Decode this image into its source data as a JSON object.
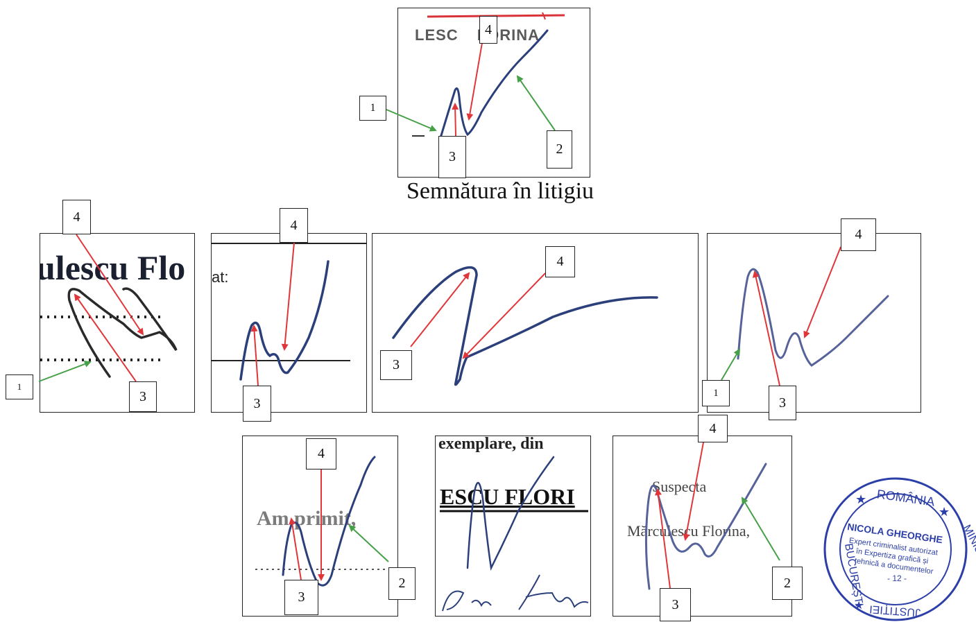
{
  "caption": "Semnătura în litigiu",
  "colors": {
    "ink": "#2b3f7a",
    "red_arrow": "#e0363a",
    "green_arrow": "#45a047",
    "stamp": "#2c3fa8"
  },
  "panel_disputed": {
    "header_text": "LESC     LORINA"
  },
  "panel_a": {
    "text": "ulescu Flo"
  },
  "panel_b": {
    "text": "at:"
  },
  "panel_g": {
    "text": "Am primit,"
  },
  "panel_h": {
    "top_text": "exemplare, din",
    "name_text": "ESCU FLORI"
  },
  "panel_i": {
    "line1": "Suspecta",
    "line2": "Mărculescu Florina,"
  },
  "labels": {
    "one": "1",
    "two": "2",
    "three": "3",
    "four": "4"
  },
  "stamp": {
    "top": "ROMÂNIA",
    "right": "MINISTERUL",
    "bottom": "JUSTIȚIEI",
    "left": "BUCUREȘTI",
    "name": "NICOLA GHEORGHE",
    "line1": "Expert criminalist autorizat",
    "line2": "în Expertiza grafică și",
    "line3": "tehnică a documentelor",
    "number": "- 12 -"
  }
}
